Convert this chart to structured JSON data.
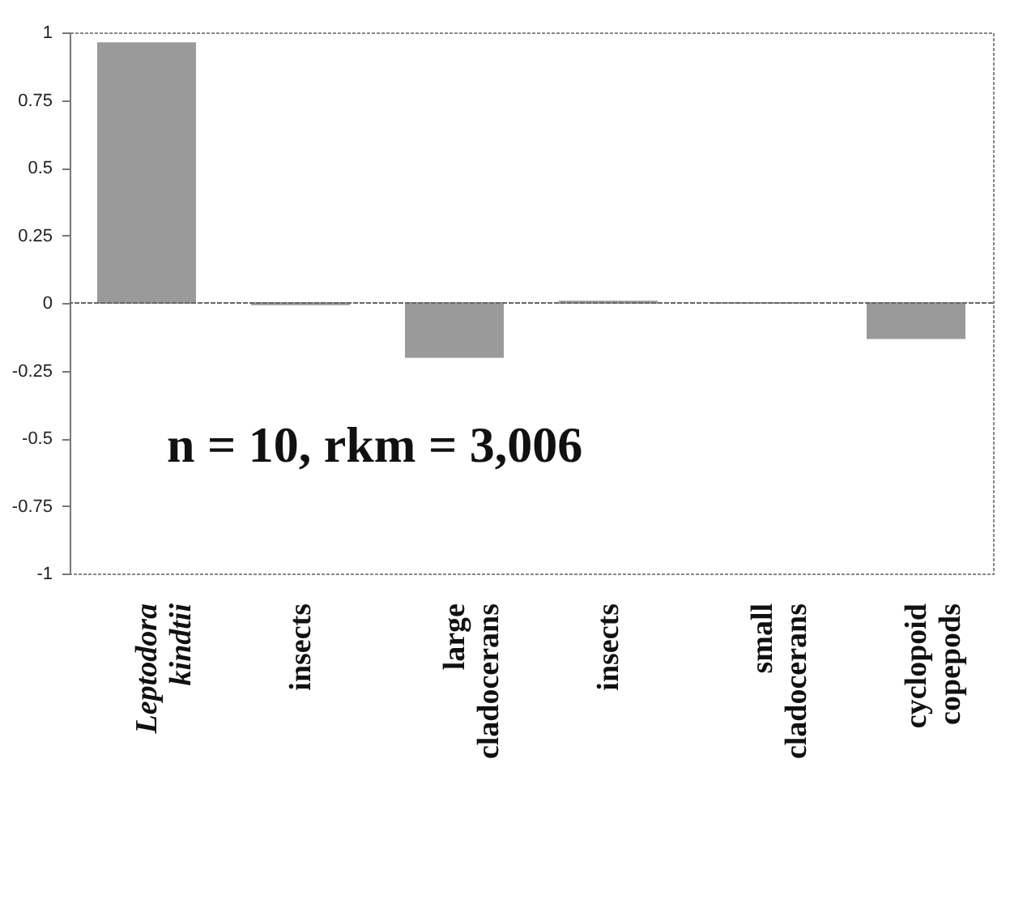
{
  "chart_data": {
    "type": "bar",
    "categories": [
      "Leptodora kindtii",
      "insects",
      "large cladocerans",
      "insects",
      "small cladocerans",
      "cyclopoid copepods"
    ],
    "values": [
      0.96,
      -0.005,
      -0.2,
      0.005,
      0,
      -0.13
    ],
    "color": "#9a9a9a",
    "ylim": [
      -1,
      1
    ],
    "yticks": [
      -1,
      -0.75,
      -0.5,
      -0.25,
      0,
      0.25,
      0.5,
      0.75,
      1
    ],
    "annotations": [
      "n = 10, rkm = 3,006"
    ]
  }
}
